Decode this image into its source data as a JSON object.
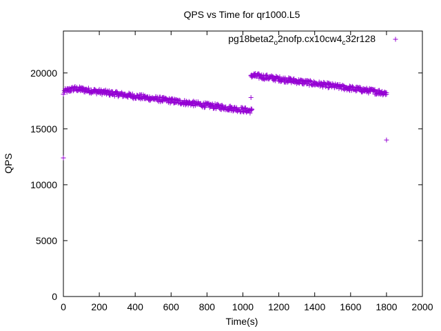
{
  "chart_data": {
    "type": "scatter",
    "title": "QPS vs Time for qr1000.L5",
    "xlabel": "Time(s)",
    "ylabel": "QPS",
    "xlim": [
      0,
      2000
    ],
    "ylim": [
      0,
      23750
    ],
    "xticks": [
      "0",
      "200",
      "400",
      "600",
      "800",
      "1000",
      "1200",
      "1400",
      "1600",
      "1800",
      "2000"
    ],
    "yticks": [
      "0",
      "5000",
      "10000",
      "15000",
      "20000"
    ],
    "grid": false,
    "legend_position": "top-right",
    "series": [
      {
        "name": "pg18beta2_o2nofp.cx10cw4_c32r128",
        "legend_text": {
          "part1": "pg18beta2",
          "sub1": "o",
          "part2": "2nofp.cx10cw4",
          "sub2": "c",
          "part3": "32r128"
        },
        "color": "#9400d3",
        "marker": "plus",
        "segments": [
          {
            "x_start": 5,
            "x_end": 60,
            "y_start": 18350,
            "y_end": 18600,
            "step": 5
          },
          {
            "x_start": 60,
            "x_end": 1050,
            "y_start": 18600,
            "y_end": 16600,
            "step": 5
          },
          {
            "x_start": 1045,
            "x_end": 1800,
            "y_start": 19800,
            "y_end": 18200,
            "step": 5
          }
        ],
        "points": [
          {
            "x": 0,
            "y": 12400
          },
          {
            "x": 0,
            "y": 18100
          },
          {
            "x": 1045,
            "y": 17800
          },
          {
            "x": 1800,
            "y": 14000
          }
        ]
      }
    ]
  }
}
